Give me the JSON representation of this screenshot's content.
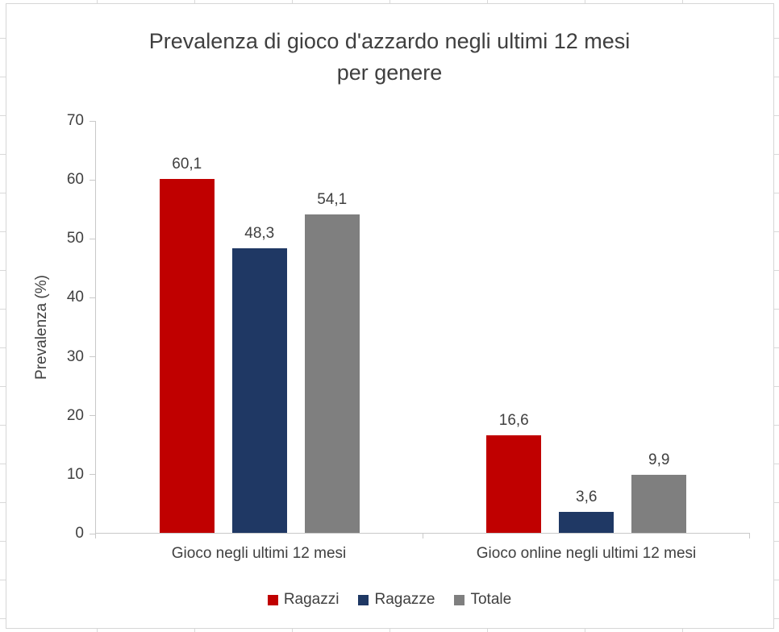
{
  "chart_data": {
    "type": "bar",
    "title": "Prevalenza di gioco d'azzardo negli ultimi 12 mesi per genere",
    "title_lines": [
      "Prevalenza di gioco d'azzardo negli ultimi 12 mesi",
      "per genere"
    ],
    "ylabel": "Prevalenza (%)",
    "categories": [
      "Gioco negli ultimi 12 mesi",
      "Gioco online negli ultimi 12 mesi"
    ],
    "series": [
      {
        "name": "Ragazzi",
        "color": "#c00000",
        "values": [
          60.1,
          16.6
        ],
        "labels": [
          "60,1",
          "16,6"
        ]
      },
      {
        "name": "Ragazze",
        "color": "#1f3864",
        "values": [
          48.3,
          3.6
        ],
        "labels": [
          "48,3",
          "3,6"
        ]
      },
      {
        "name": "Totale",
        "color": "#7f7f7f",
        "values": [
          54.1,
          9.9
        ],
        "labels": [
          "54,1",
          "9,9"
        ]
      }
    ],
    "ylim": [
      0,
      70
    ],
    "yticks": [
      0,
      10,
      20,
      30,
      40,
      50,
      60,
      70
    ],
    "grid": false,
    "legend_position": "bottom"
  }
}
